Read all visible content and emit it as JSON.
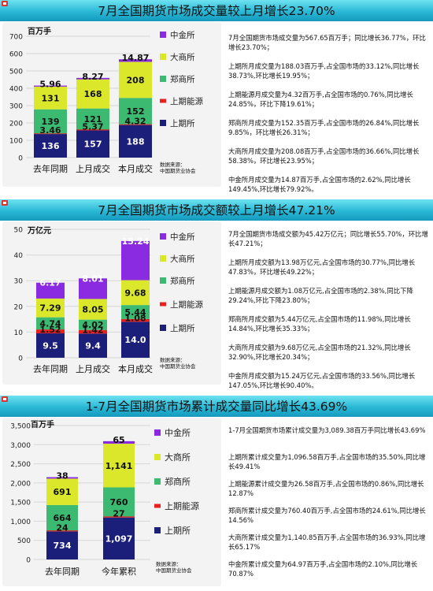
{
  "colors": {
    "上期所": "#1b1f7a",
    "上期能源": "#e8201f",
    "郑商所": "#3cba72",
    "大商所": "#dbe72b",
    "中金所": "#8a2be2",
    "band": "#2ab8d6"
  },
  "chart_data": [
    {
      "type": "bar",
      "stacked": true,
      "title": "7月全国期货市场成交量较上月增长23.70%",
      "ylabel": "百万手",
      "ylim": [
        0,
        700
      ],
      "yticks": [
        0,
        100,
        200,
        300,
        400,
        500,
        600,
        700
      ],
      "categories": [
        "去年同期",
        "上月成交",
        "本月成交"
      ],
      "series": [
        {
          "name": "上期所",
          "values": [
            136,
            157,
            188
          ],
          "labels": [
            "136",
            "157",
            "188"
          ]
        },
        {
          "name": "上期能源",
          "values": [
            3.46,
            5.37,
            4.32
          ],
          "labels": [
            "3.46",
            "5.37",
            "4.32"
          ]
        },
        {
          "name": "郑商所",
          "values": [
            139,
            121,
            152
          ],
          "labels": [
            "139",
            "121",
            "152"
          ]
        },
        {
          "name": "大商所",
          "values": [
            131,
            168,
            208
          ],
          "labels": [
            "131",
            "168",
            "208"
          ]
        },
        {
          "name": "中金所",
          "values": [
            5.96,
            8.27,
            14.87
          ],
          "labels": [
            "5.96",
            "8.27",
            "14.87"
          ]
        }
      ],
      "legend_order": [
        "中金所",
        "大商所",
        "郑商所",
        "上期能源",
        "上期所"
      ],
      "legend_position": "right",
      "source": [
        "数据来源：",
        "中国期货业协会"
      ],
      "notes": [
        "7月全国期货市场成交量为567.65百万手；同比增长36.77%，环比增长23.70%；",
        "上期所月成交量为188.03百万手,占全国市场的33.12%,同比增长38.73%,环比增长19.95%；",
        "上期能源月成交量为4.32百万手,占全国市场的0.76%,同比增长24.85%，环比下降19.61%；",
        "郑商所月成交量为152.35百万手,占全国市场的26.84%,同比增长9.85%，环比增长26.31%；",
        "大商所月成交量为208.08百万手,占全国市场的36.66%,同比增长58.38%，环比增长23.95%；",
        "中金所月成交量为14.87百万手,占全国市场的2.62%,同比增长149.45%,环比增长79.92%。"
      ]
    },
    {
      "type": "bar",
      "stacked": true,
      "title": "7月全国期货市场成交额较上月增长47.21%",
      "ylabel": "万亿元",
      "ylim": [
        0,
        50
      ],
      "yticks": [
        0,
        10,
        20,
        30,
        40,
        50
      ],
      "categories": [
        "去年同期",
        "上月成交",
        "本月成交"
      ],
      "series": [
        {
          "name": "上期所",
          "values": [
            9.5,
            9.4,
            14.0
          ],
          "labels": [
            "9.5",
            "9.4",
            "14.0"
          ]
        },
        {
          "name": "上期能源",
          "values": [
            1.52,
            1.42,
            1.08
          ],
          "labels": [
            "1.52",
            "1.42",
            "1.08"
          ]
        },
        {
          "name": "郑商所",
          "values": [
            4.74,
            4.02,
            5.44
          ],
          "labels": [
            "4.74",
            "4.02",
            "5.44"
          ]
        },
        {
          "name": "大商所",
          "values": [
            7.29,
            8.05,
            9.68
          ],
          "labels": [
            "7.29",
            "8.05",
            "9.68"
          ]
        },
        {
          "name": "中金所",
          "values": [
            6.17,
            8.01,
            15.24
          ],
          "labels": [
            "6.17",
            "8.01",
            "15.24"
          ]
        }
      ],
      "legend_order": [
        "中金所",
        "大商所",
        "郑商所",
        "上期能源",
        "上期所"
      ],
      "legend_position": "right",
      "source": [
        "数据来源：",
        "中国期货业协会"
      ],
      "notes": [
        "7月全国期货市场成交额为45.42万亿元；同比增长55.70%，环比增长47.21%；",
        "上期所月成交额为13.98万亿元,占全国市场的30.77%,同比增长47.83%，环比增长49.22%；",
        "上期能源月成交额为1.08万亿元,占全国市场的2.38%,同比下降29.24%,环比下降23.80%；",
        "郑商所月成交额为5.44万亿元,占全国市场的11.98%,同比增长14.84%,环比增长35.33%；",
        "大商所月成交额为9.68万亿元,占全国市场的21.32%,同比增长32.90%,环比增长20.34%；",
        "中金所月成交额为15.24万亿元,占全国市场的33.56%,同比增长147.05%,环比增长90.40%。"
      ]
    },
    {
      "type": "bar",
      "stacked": true,
      "title": "1-7月全国期货市场累计成交量同比增长43.69%",
      "ylabel": "百万手",
      "ylim": [
        0,
        3500
      ],
      "yticks": [
        0,
        500,
        1000,
        1500,
        2000,
        2500,
        3000,
        3500
      ],
      "yticklabels": [
        "0",
        "500",
        "1,000",
        "1,500",
        "2,000",
        "2,500",
        "3,000",
        "3,500"
      ],
      "categories": [
        "去年同期",
        "今年累积"
      ],
      "series": [
        {
          "name": "上期所",
          "values": [
            734,
            1097
          ],
          "labels": [
            "734",
            "1,097"
          ]
        },
        {
          "name": "上期能源",
          "values": [
            24,
            27
          ],
          "labels": [
            "24",
            "27"
          ]
        },
        {
          "name": "郑商所",
          "values": [
            664,
            760
          ],
          "labels": [
            "664",
            "760"
          ]
        },
        {
          "name": "大商所",
          "values": [
            691,
            1141
          ],
          "labels": [
            "691",
            "1,141"
          ]
        },
        {
          "name": "中金所",
          "values": [
            38,
            65
          ],
          "labels": [
            "38",
            "65"
          ]
        }
      ],
      "legend_order": [
        "中金所",
        "大商所",
        "郑商所",
        "上期能源",
        "上期所"
      ],
      "legend_position": "right",
      "source": [
        "数据来源：",
        "中国期货业协会"
      ],
      "notes": [
        "1-7月全国期货市场累计成交量为3,089.38百万手同比增长43.69%",
        "上期所累计成交量为1,096.58百万手,占全国市场的35.50%,同比增长49.41%",
        "上期能源累计成交量为26.58百万手,占全国市场的0.86%,同比增长12.87%",
        "郑商所累计成交量为760.40百万手,占全国市场的24.61%,同比增长14.56%",
        "大商所累计成交量为1,140.85百万手,占全国市场的36.93%,同比增长65.17%",
        "中金所累计成交量为64.97百万手,占全国市场的2.10%,同比增长70.87%"
      ]
    }
  ]
}
